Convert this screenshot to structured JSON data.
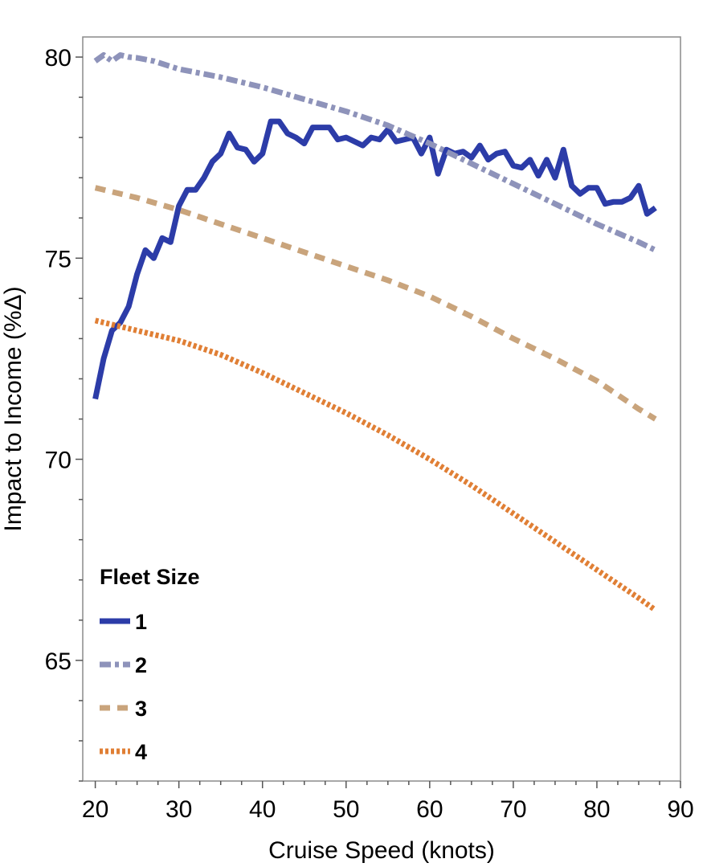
{
  "chart_data": {
    "type": "line",
    "title": "",
    "xlabel": "Cruise Speed (knots)",
    "ylabel": "Impact to Income (%Δ)",
    "xlim": [
      18.5,
      90
    ],
    "ylim": [
      62.0,
      80.5
    ],
    "x_ticks": [
      20,
      30,
      40,
      50,
      60,
      70,
      80,
      90
    ],
    "y_ticks": [
      65,
      70,
      75,
      80
    ],
    "x_minor_step": 2.5,
    "y_minor_step": 1,
    "grid": false,
    "legend": {
      "title": "Fleet Size",
      "position": "bottom-left"
    },
    "series": [
      {
        "name": "1",
        "color": "#2c3ca8",
        "dash": "solid",
        "x": [
          20,
          21,
          22,
          23,
          24,
          25,
          26,
          27,
          28,
          29,
          30,
          31,
          32,
          33,
          34,
          35,
          36,
          37,
          38,
          39,
          40,
          41,
          42,
          43,
          44,
          45,
          46,
          47,
          48,
          49,
          50,
          51,
          52,
          53,
          54,
          55,
          56,
          57,
          58,
          59,
          60,
          61,
          62,
          63,
          64,
          65,
          66,
          67,
          68,
          69,
          70,
          71,
          72,
          73,
          74,
          75,
          76,
          77,
          78,
          79,
          80,
          81,
          82,
          83,
          84,
          85,
          86,
          87
        ],
        "y": [
          71.5,
          72.5,
          73.2,
          73.4,
          73.8,
          74.6,
          75.2,
          75.0,
          75.5,
          75.4,
          76.3,
          76.7,
          76.7,
          77.0,
          77.4,
          77.6,
          78.1,
          77.75,
          77.7,
          77.4,
          77.6,
          78.4,
          78.4,
          78.1,
          78.0,
          77.85,
          78.25,
          78.25,
          78.25,
          77.95,
          78.0,
          77.9,
          77.8,
          78.0,
          77.95,
          78.2,
          77.9,
          77.95,
          78.0,
          77.6,
          78.0,
          77.1,
          77.7,
          77.6,
          77.65,
          77.5,
          77.8,
          77.45,
          77.6,
          77.65,
          77.3,
          77.25,
          77.45,
          77.05,
          77.45,
          77.0,
          77.7,
          76.8,
          76.6,
          76.75,
          76.75,
          76.35,
          76.4,
          76.4,
          76.5,
          76.8,
          76.1,
          76.25
        ]
      },
      {
        "name": "2",
        "color": "#8e93ba",
        "dash": "dashdot",
        "x": [
          20,
          21,
          22,
          23,
          24,
          25,
          27,
          30,
          35,
          40,
          45,
          50,
          55,
          60,
          65,
          70,
          75,
          80,
          85,
          87
        ],
        "y": [
          79.9,
          80.05,
          79.9,
          80.05,
          80.0,
          79.98,
          79.9,
          79.7,
          79.5,
          79.25,
          78.95,
          78.65,
          78.3,
          77.85,
          77.35,
          76.85,
          76.35,
          75.85,
          75.4,
          75.2
        ]
      },
      {
        "name": "3",
        "color": "#c9a47c",
        "dash": "dashed",
        "x": [
          20,
          25,
          30,
          35,
          40,
          45,
          50,
          55,
          60,
          65,
          70,
          75,
          80,
          85,
          87
        ],
        "y": [
          76.75,
          76.5,
          76.2,
          75.85,
          75.5,
          75.15,
          74.8,
          74.45,
          74.05,
          73.55,
          73.0,
          72.5,
          71.95,
          71.25,
          71.0
        ]
      },
      {
        "name": "4",
        "color": "#e07f35",
        "dash": "dotted",
        "x": [
          20,
          25,
          30,
          35,
          40,
          45,
          50,
          55,
          60,
          65,
          70,
          75,
          80,
          85,
          87
        ],
        "y": [
          73.45,
          73.2,
          72.95,
          72.6,
          72.15,
          71.65,
          71.15,
          70.6,
          70.0,
          69.35,
          68.65,
          67.95,
          67.25,
          66.55,
          66.25
        ]
      }
    ]
  }
}
